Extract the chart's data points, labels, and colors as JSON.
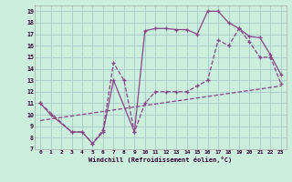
{
  "xlabel": "Windchill (Refroidissement éolien,°C)",
  "bg_color": "#cceedd",
  "grid_color": "#aacccc",
  "line_color": "#884488",
  "xlim": [
    -0.5,
    23.5
  ],
  "ylim": [
    7,
    19.5
  ],
  "xticks": [
    0,
    1,
    2,
    3,
    4,
    5,
    6,
    7,
    8,
    9,
    10,
    11,
    12,
    13,
    14,
    15,
    16,
    17,
    18,
    19,
    20,
    21,
    22,
    23
  ],
  "yticks": [
    7,
    8,
    9,
    10,
    11,
    12,
    13,
    14,
    15,
    16,
    17,
    18,
    19
  ],
  "line1_x": [
    0,
    1,
    3,
    4,
    5,
    6,
    7,
    9,
    10,
    11,
    12,
    13,
    14,
    15,
    16,
    17,
    18,
    19,
    20,
    21,
    22,
    23
  ],
  "line1_y": [
    11.0,
    10.0,
    8.5,
    8.5,
    7.5,
    8.5,
    13.0,
    8.5,
    17.3,
    17.5,
    17.5,
    17.4,
    17.4,
    17.0,
    19.0,
    19.0,
    18.0,
    17.5,
    16.8,
    16.7,
    15.2,
    13.5
  ],
  "line2_x": [
    0,
    3,
    4,
    5,
    6,
    7,
    8,
    9,
    10,
    11,
    12,
    13,
    14,
    15,
    16,
    17,
    18,
    19,
    20,
    21,
    22,
    23
  ],
  "line2_y": [
    11.0,
    8.5,
    8.5,
    7.5,
    8.7,
    14.5,
    13.0,
    8.5,
    11.0,
    12.0,
    12.0,
    12.0,
    12.0,
    12.5,
    13.0,
    16.5,
    16.0,
    17.5,
    16.3,
    15.0,
    15.0,
    12.7
  ],
  "line3_x": [
    0,
    23
  ],
  "line3_y": [
    9.5,
    12.5
  ]
}
